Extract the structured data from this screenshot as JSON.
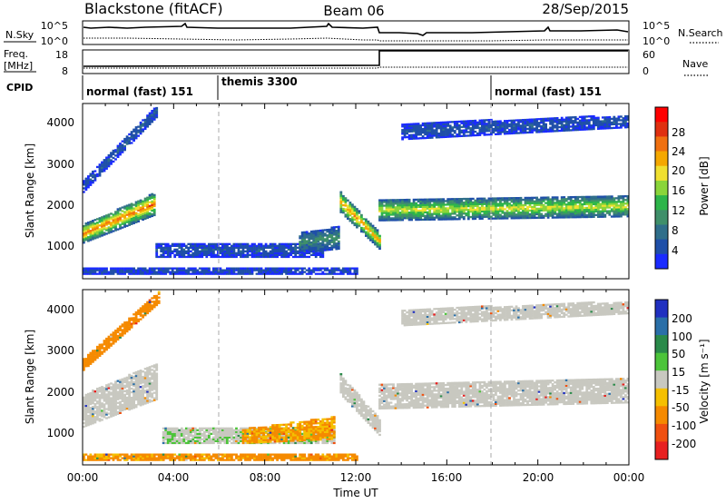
{
  "header": {
    "station": "Blackstone (fitACF)",
    "beam": "Beam 06",
    "date": "28/Sep/2015"
  },
  "top_panel": {
    "left_label": "N.Sky",
    "left_ticks": [
      "10^5",
      "10^0"
    ],
    "right_ticks": [
      "10^5",
      "10^0"
    ],
    "right_label": "N.Search"
  },
  "freq_panel": {
    "left_label_1": "Freq.",
    "left_label_2": "[MHz]",
    "left_ticks": [
      "18",
      "8"
    ],
    "right_ticks": [
      "60",
      "0"
    ],
    "right_label": "Nave"
  },
  "cpid": {
    "label": "CPID",
    "modes": [
      {
        "name": "normal (fast) 151",
        "start_hour": 0
      },
      {
        "name": "themis 3300",
        "start_hour": 6
      },
      {
        "name": "normal (fast) 151",
        "start_hour": 18
      }
    ]
  },
  "x_axis": {
    "title": "Time UT",
    "ticks": [
      "00:00",
      "04:00",
      "08:00",
      "12:00",
      "16:00",
      "20:00",
      "00:00"
    ],
    "range_hours": [
      0,
      24
    ]
  },
  "power_panel": {
    "ylabel": "Slant Range [km]",
    "yticks": [
      "4000",
      "3000",
      "2000",
      "1000"
    ],
    "cbar_label": "Power [dB]",
    "cbar_ticks": [
      "28",
      "24",
      "20",
      "16",
      "12",
      "8",
      "4"
    ]
  },
  "velocity_panel": {
    "ylabel": "Slant Range [km]",
    "yticks": [
      "4000",
      "3000",
      "2000",
      "1000"
    ],
    "cbar_label": "Velocity [m s⁻¹]",
    "cbar_ticks": [
      "200",
      "100",
      "50",
      "15",
      "-15",
      "-50",
      "-100",
      "-200"
    ]
  },
  "chart_data": {
    "type": "heatmap",
    "x_unit": "hours UT",
    "y_unit": "km",
    "xlim": [
      0,
      24
    ],
    "ylim": [
      180,
      4500
    ],
    "power_colors": [
      "#1a2bff",
      "#1f4fa8",
      "#2f6e8a",
      "#3f8f6a",
      "#2db54a",
      "#8ad53a",
      "#f0e030",
      "#f5a800",
      "#f07010",
      "#e03010",
      "#ff0000"
    ],
    "velocity_colors": [
      "#2030c0",
      "#2a6fa8",
      "#2a8a4a",
      "#4cc43a",
      "#c8c8c0",
      "#f5c000",
      "#f58a00",
      "#f05010",
      "#e82020"
    ],
    "power_bands": [
      {
        "t0": 0.0,
        "t1": 3.2,
        "r0_start": 1050,
        "r0_end": 1750,
        "r1_start": 1500,
        "r1_end": 2300,
        "level": 0.8
      },
      {
        "t0": 0.0,
        "t1": 3.3,
        "r0_start": 2300,
        "r0_end": 4200,
        "r1_start": 2600,
        "r1_end": 4500,
        "level": 0.15
      },
      {
        "t0": 3.2,
        "t1": 10.5,
        "r0_start": 700,
        "r0_end": 700,
        "r1_start": 1050,
        "r1_end": 1050,
        "level": 0.12
      },
      {
        "t0": 9.5,
        "t1": 11.2,
        "r0_start": 800,
        "r0_end": 900,
        "r1_start": 1300,
        "r1_end": 1450,
        "level": 0.3
      },
      {
        "t0": 11.3,
        "t1": 13.0,
        "r0_start": 1800,
        "r0_end": 900,
        "r1_start": 2300,
        "r1_end": 1300,
        "level": 0.75
      },
      {
        "t0": 13.0,
        "t1": 24.0,
        "r0_start": 1600,
        "r0_end": 1700,
        "r1_start": 2100,
        "r1_end": 2200,
        "level": 0.6
      },
      {
        "t0": 14.0,
        "t1": 24.0,
        "r0_start": 3600,
        "r0_end": 3900,
        "r1_start": 4000,
        "r1_end": 4200,
        "level": 0.12
      },
      {
        "t0": 0.0,
        "t1": 12.0,
        "r0_start": 280,
        "r0_end": 280,
        "r1_start": 430,
        "r1_end": 430,
        "level": 0.1
      }
    ],
    "velocity_bands": [
      {
        "t0": 0.0,
        "t1": 3.3,
        "r0_start": 1100,
        "r0_end": 1800,
        "r1_start": 1900,
        "r1_end": 2700,
        "v": 0
      },
      {
        "t0": 0.0,
        "t1": 3.4,
        "r0_start": 2500,
        "r0_end": 4200,
        "r1_start": 2800,
        "r1_end": 4500,
        "v": -60
      },
      {
        "t0": 3.5,
        "t1": 11.0,
        "r0_start": 700,
        "r0_end": 700,
        "r1_start": 1100,
        "r1_end": 1100,
        "v": 10
      },
      {
        "t0": 7.0,
        "t1": 11.0,
        "r0_start": 700,
        "r0_end": 800,
        "r1_start": 1050,
        "r1_end": 1350,
        "v": -35
      },
      {
        "t0": 11.3,
        "t1": 13.0,
        "r0_start": 1900,
        "r0_end": 900,
        "r1_start": 2400,
        "r1_end": 1300,
        "v": 0
      },
      {
        "t0": 13.0,
        "t1": 24.0,
        "r0_start": 1550,
        "r0_end": 1700,
        "r1_start": 2150,
        "r1_end": 2300,
        "v": 0
      },
      {
        "t0": 14.0,
        "t1": 24.0,
        "r0_start": 3600,
        "r0_end": 3900,
        "r1_start": 4000,
        "r1_end": 4200,
        "v": 0
      },
      {
        "t0": 0.0,
        "t1": 12.0,
        "r0_start": 280,
        "r0_end": 280,
        "r1_start": 460,
        "r1_end": 460,
        "v": -40
      }
    ]
  }
}
